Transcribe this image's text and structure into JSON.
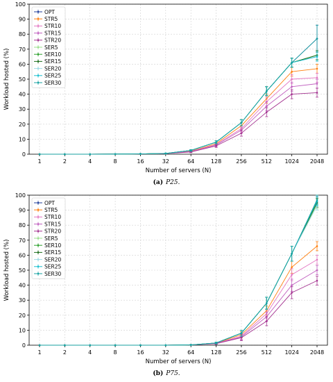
{
  "chart_data": [
    {
      "type": "line",
      "caption_label": "(a)",
      "caption_text": "P25.",
      "xlabel": "Number of servers (N)",
      "ylabel": "Workload hosted (%)",
      "categories": [
        "1",
        "2",
        "4",
        "8",
        "16",
        "32",
        "64",
        "128",
        "256",
        "512",
        "1024",
        "2048"
      ],
      "ylim": [
        0,
        100
      ],
      "yticks": [
        0,
        10,
        20,
        30,
        40,
        50,
        60,
        70,
        80,
        90,
        100
      ],
      "grid": true,
      "legend_position": "top-left",
      "series": [
        {
          "name": "OPT",
          "color": "#1f3d99",
          "values": [
            0,
            0,
            0,
            0.1,
            0.2,
            0.5,
            2.5,
            8,
            21,
            42,
            61,
            77
          ],
          "err": [
            0,
            0,
            0,
            0,
            0,
            0.2,
            0.5,
            1,
            2,
            3,
            3,
            9
          ]
        },
        {
          "name": "STR5",
          "color": "#ff7f0e",
          "values": [
            0,
            0,
            0,
            0.1,
            0.2,
            0.5,
            2.0,
            7,
            19,
            37,
            55,
            57
          ],
          "err": [
            0,
            0,
            0,
            0,
            0,
            0.2,
            0.5,
            1,
            2,
            3,
            3,
            3
          ]
        },
        {
          "name": "STR10",
          "color": "#e377c2",
          "values": [
            0,
            0,
            0,
            0.1,
            0.2,
            0.4,
            1.8,
            6.5,
            17,
            35,
            50,
            51
          ],
          "err": [
            0,
            0,
            0,
            0,
            0,
            0.2,
            0.5,
            1,
            2,
            3,
            3,
            3
          ]
        },
        {
          "name": "STR15",
          "color": "#c05fbf",
          "values": [
            0,
            0,
            0,
            0.1,
            0.2,
            0.4,
            1.7,
            6,
            16,
            32,
            45,
            47
          ],
          "err": [
            0,
            0,
            0,
            0,
            0,
            0.2,
            0.5,
            1,
            2,
            3,
            3,
            3
          ]
        },
        {
          "name": "STR20",
          "color": "#a3318f",
          "values": [
            0,
            0,
            0,
            0.1,
            0.2,
            0.4,
            1.5,
            5.5,
            14,
            28,
            40,
            41
          ],
          "err": [
            0,
            0,
            0,
            0,
            0,
            0.2,
            0.5,
            1,
            2,
            3,
            3,
            3
          ]
        },
        {
          "name": "SER5",
          "color": "#98df8a",
          "values": [
            0,
            0,
            0,
            0.1,
            0.2,
            0.5,
            2.5,
            8,
            21,
            42,
            61,
            66
          ],
          "err": [
            0,
            0,
            0,
            0,
            0,
            0.2,
            0.5,
            1,
            2,
            3,
            3,
            3
          ]
        },
        {
          "name": "SER10",
          "color": "#2ca02c",
          "values": [
            0,
            0,
            0,
            0.1,
            0.2,
            0.5,
            2.5,
            8,
            21,
            42,
            61,
            66
          ],
          "err": [
            0,
            0,
            0,
            0,
            0,
            0.2,
            0.5,
            1,
            2,
            3,
            3,
            3
          ]
        },
        {
          "name": "SER15",
          "color": "#1a6b1a",
          "values": [
            0,
            0,
            0,
            0.1,
            0.2,
            0.5,
            2.5,
            8,
            21,
            42,
            61,
            66
          ],
          "err": [
            0,
            0,
            0,
            0,
            0,
            0.2,
            0.5,
            1,
            2,
            3,
            3,
            3
          ]
        },
        {
          "name": "SER20",
          "color": "#9edae5",
          "values": [
            0,
            0,
            0,
            0.1,
            0.2,
            0.5,
            2.5,
            8,
            21,
            42,
            61,
            65
          ],
          "err": [
            0,
            0,
            0,
            0,
            0,
            0.2,
            0.5,
            1,
            2,
            3,
            3,
            3
          ]
        },
        {
          "name": "SER25",
          "color": "#17becf",
          "values": [
            0,
            0,
            0,
            0.1,
            0.2,
            0.5,
            2.5,
            8,
            21,
            42,
            61,
            65
          ],
          "err": [
            0,
            0,
            0,
            0,
            0,
            0.2,
            0.5,
            1,
            2,
            3,
            3,
            3
          ]
        },
        {
          "name": "SER30",
          "color": "#17a2a2",
          "values": [
            0,
            0,
            0,
            0.1,
            0.2,
            0.5,
            2.5,
            8,
            21,
            42,
            61,
            77
          ],
          "err": [
            0,
            0,
            0,
            0,
            0,
            0.2,
            0.5,
            1,
            2,
            3,
            3,
            9
          ]
        }
      ]
    },
    {
      "type": "line",
      "caption_label": "(b)",
      "caption_text": "P75.",
      "xlabel": "Number of servers (N)",
      "ylabel": "Workload hosted (%)",
      "categories": [
        "1",
        "2",
        "4",
        "8",
        "16",
        "32",
        "64",
        "128",
        "256",
        "512",
        "1024",
        "2048"
      ],
      "ylim": [
        0,
        100
      ],
      "yticks": [
        0,
        10,
        20,
        30,
        40,
        50,
        60,
        70,
        80,
        90,
        100
      ],
      "grid": true,
      "legend_position": "top-left",
      "series": [
        {
          "name": "OPT",
          "color": "#1f3d99",
          "values": [
            0,
            0,
            0,
            0,
            0,
            0,
            0.2,
            1.5,
            8,
            28,
            61,
            96
          ],
          "err": [
            0,
            0,
            0,
            0,
            0,
            0,
            0.1,
            0.5,
            2,
            4,
            5,
            3
          ]
        },
        {
          "name": "STR5",
          "color": "#ff7f0e",
          "values": [
            0,
            0,
            0,
            0,
            0,
            0,
            0.2,
            1.3,
            7,
            23,
            52,
            66
          ],
          "err": [
            0,
            0,
            0,
            0,
            0,
            0,
            0.1,
            0.5,
            2,
            3,
            4,
            3
          ]
        },
        {
          "name": "STR10",
          "color": "#e377c2",
          "values": [
            0,
            0,
            0,
            0,
            0,
            0,
            0.2,
            1.2,
            6,
            21,
            47,
            57
          ],
          "err": [
            0,
            0,
            0,
            0,
            0,
            0,
            0.1,
            0.5,
            2,
            3,
            4,
            3
          ]
        },
        {
          "name": "STR15",
          "color": "#c05fbf",
          "values": [
            0,
            0,
            0,
            0,
            0,
            0,
            0.2,
            1.1,
            5.5,
            19,
            40,
            50
          ],
          "err": [
            0,
            0,
            0,
            0,
            0,
            0,
            0.1,
            0.5,
            2,
            3,
            4,
            3
          ]
        },
        {
          "name": "STR20",
          "color": "#a3318f",
          "values": [
            0,
            0,
            0,
            0,
            0,
            0,
            0.2,
            1.0,
            5,
            16,
            35,
            43
          ],
          "err": [
            0,
            0,
            0,
            0,
            0,
            0,
            0.1,
            0.5,
            2,
            3,
            4,
            3
          ]
        },
        {
          "name": "SER5",
          "color": "#98df8a",
          "values": [
            0,
            0,
            0,
            0,
            0,
            0,
            0.2,
            1.5,
            8,
            28,
            61,
            94
          ],
          "err": [
            0,
            0,
            0,
            0,
            0,
            0,
            0.1,
            0.5,
            2,
            4,
            5,
            3
          ]
        },
        {
          "name": "SER10",
          "color": "#2ca02c",
          "values": [
            0,
            0,
            0,
            0,
            0,
            0,
            0.2,
            1.5,
            8,
            28,
            61,
            95
          ],
          "err": [
            0,
            0,
            0,
            0,
            0,
            0,
            0.1,
            0.5,
            2,
            4,
            5,
            3
          ]
        },
        {
          "name": "SER15",
          "color": "#1a6b1a",
          "values": [
            0,
            0,
            0,
            0,
            0,
            0,
            0.2,
            1.5,
            8,
            28,
            61,
            95
          ],
          "err": [
            0,
            0,
            0,
            0,
            0,
            0,
            0.1,
            0.5,
            2,
            4,
            5,
            3
          ]
        },
        {
          "name": "SER20",
          "color": "#9edae5",
          "values": [
            0,
            0,
            0,
            0,
            0,
            0,
            0.2,
            1.5,
            8,
            28,
            61,
            93
          ],
          "err": [
            0,
            0,
            0,
            0,
            0,
            0,
            0.1,
            0.5,
            2,
            4,
            5,
            3
          ]
        },
        {
          "name": "SER25",
          "color": "#17becf",
          "values": [
            0,
            0,
            0,
            0,
            0,
            0,
            0.2,
            1.5,
            8,
            28,
            61,
            96
          ],
          "err": [
            0,
            0,
            0,
            0,
            0,
            0,
            0.1,
            0.5,
            2,
            4,
            5,
            3
          ]
        },
        {
          "name": "SER30",
          "color": "#17a2a2",
          "values": [
            0,
            0,
            0,
            0,
            0,
            0,
            0.2,
            1.5,
            8,
            28,
            61,
            97
          ],
          "err": [
            0,
            0,
            0,
            0,
            0,
            0,
            0.1,
            0.5,
            2,
            4,
            5,
            3
          ]
        }
      ]
    }
  ]
}
